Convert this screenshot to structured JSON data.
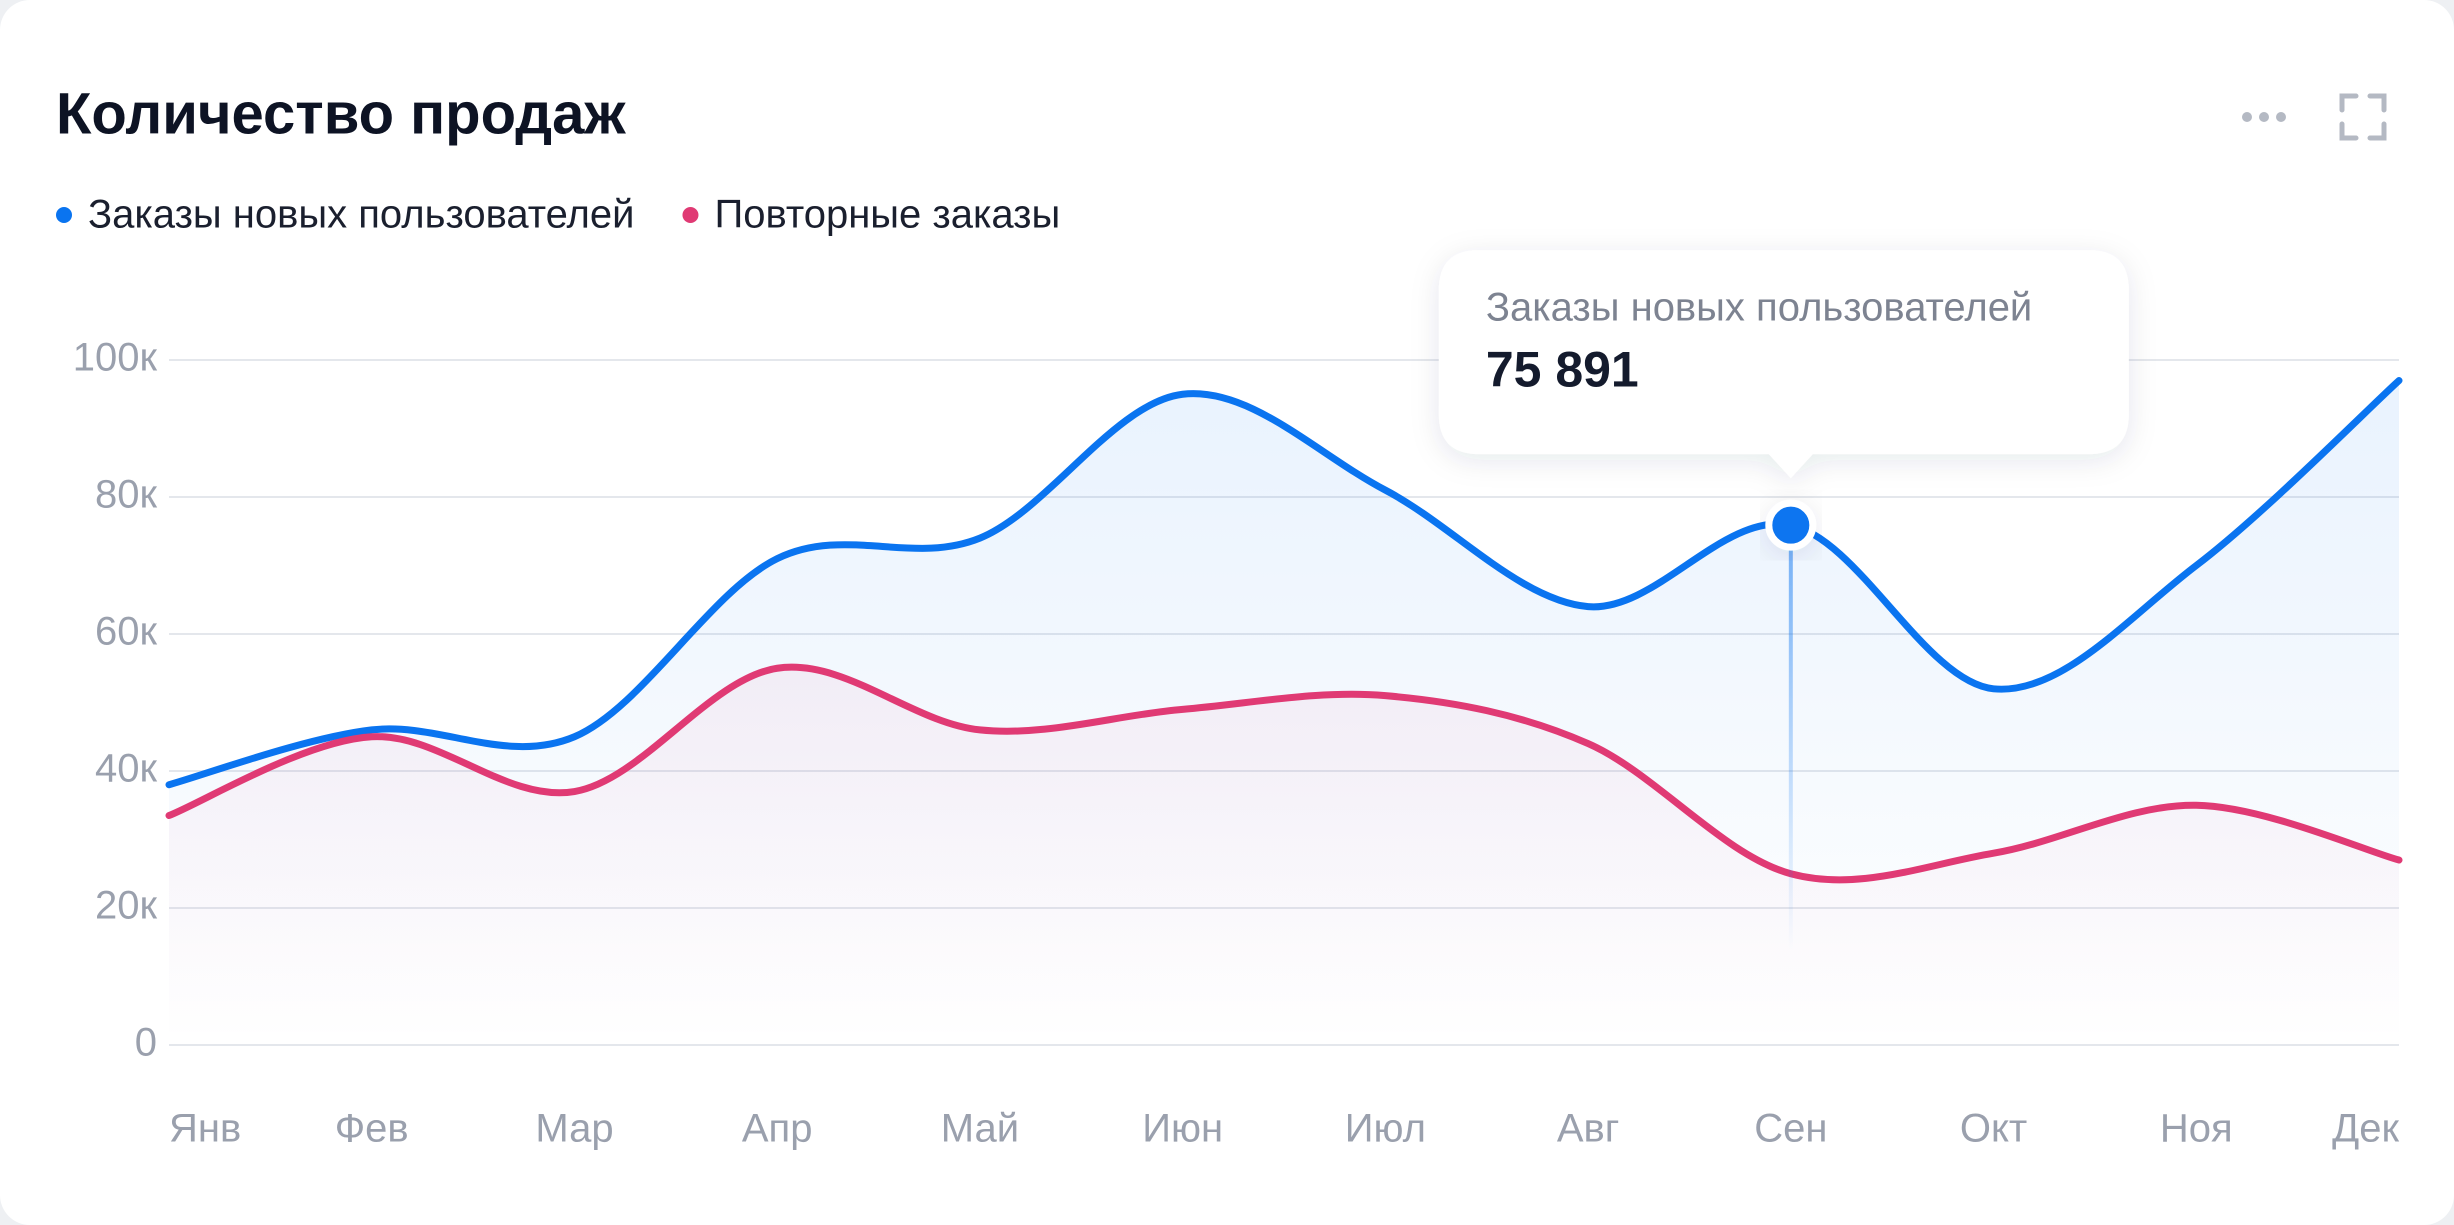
{
  "chart_data": {
    "type": "line",
    "title": "Количество продаж",
    "categories": [
      "Янв",
      "Фев",
      "Мар",
      "Апр",
      "Май",
      "Июн",
      "Июл",
      "Авг",
      "Сен",
      "Окт",
      "Ноя",
      "Дек"
    ],
    "series": [
      {
        "name": "Заказы новых пользователей",
        "color": "#0a74f0",
        "values": [
          38000,
          46000,
          45000,
          71000,
          74000,
          95000,
          81000,
          64000,
          75891,
          52000,
          70000,
          97000
        ],
        "value_labels": [
          null,
          null,
          null,
          null,
          null,
          null,
          null,
          null,
          "75 891",
          null,
          null,
          null
        ]
      },
      {
        "name": "Повторные заказы",
        "color": "#e03a74",
        "values": [
          33500,
          45000,
          37000,
          55000,
          46000,
          49000,
          51000,
          44000,
          25000,
          28000,
          35000,
          27000
        ]
      }
    ],
    "ylim": [
      0,
      100000
    ],
    "yticks": [
      {
        "value": 0,
        "label": "0"
      },
      {
        "value": 20000,
        "label": "20к"
      },
      {
        "value": 40000,
        "label": "40к"
      },
      {
        "value": 60000,
        "label": "60к"
      },
      {
        "value": 80000,
        "label": "80к"
      },
      {
        "value": 100000,
        "label": "100к"
      }
    ],
    "grid": true
  }
}
